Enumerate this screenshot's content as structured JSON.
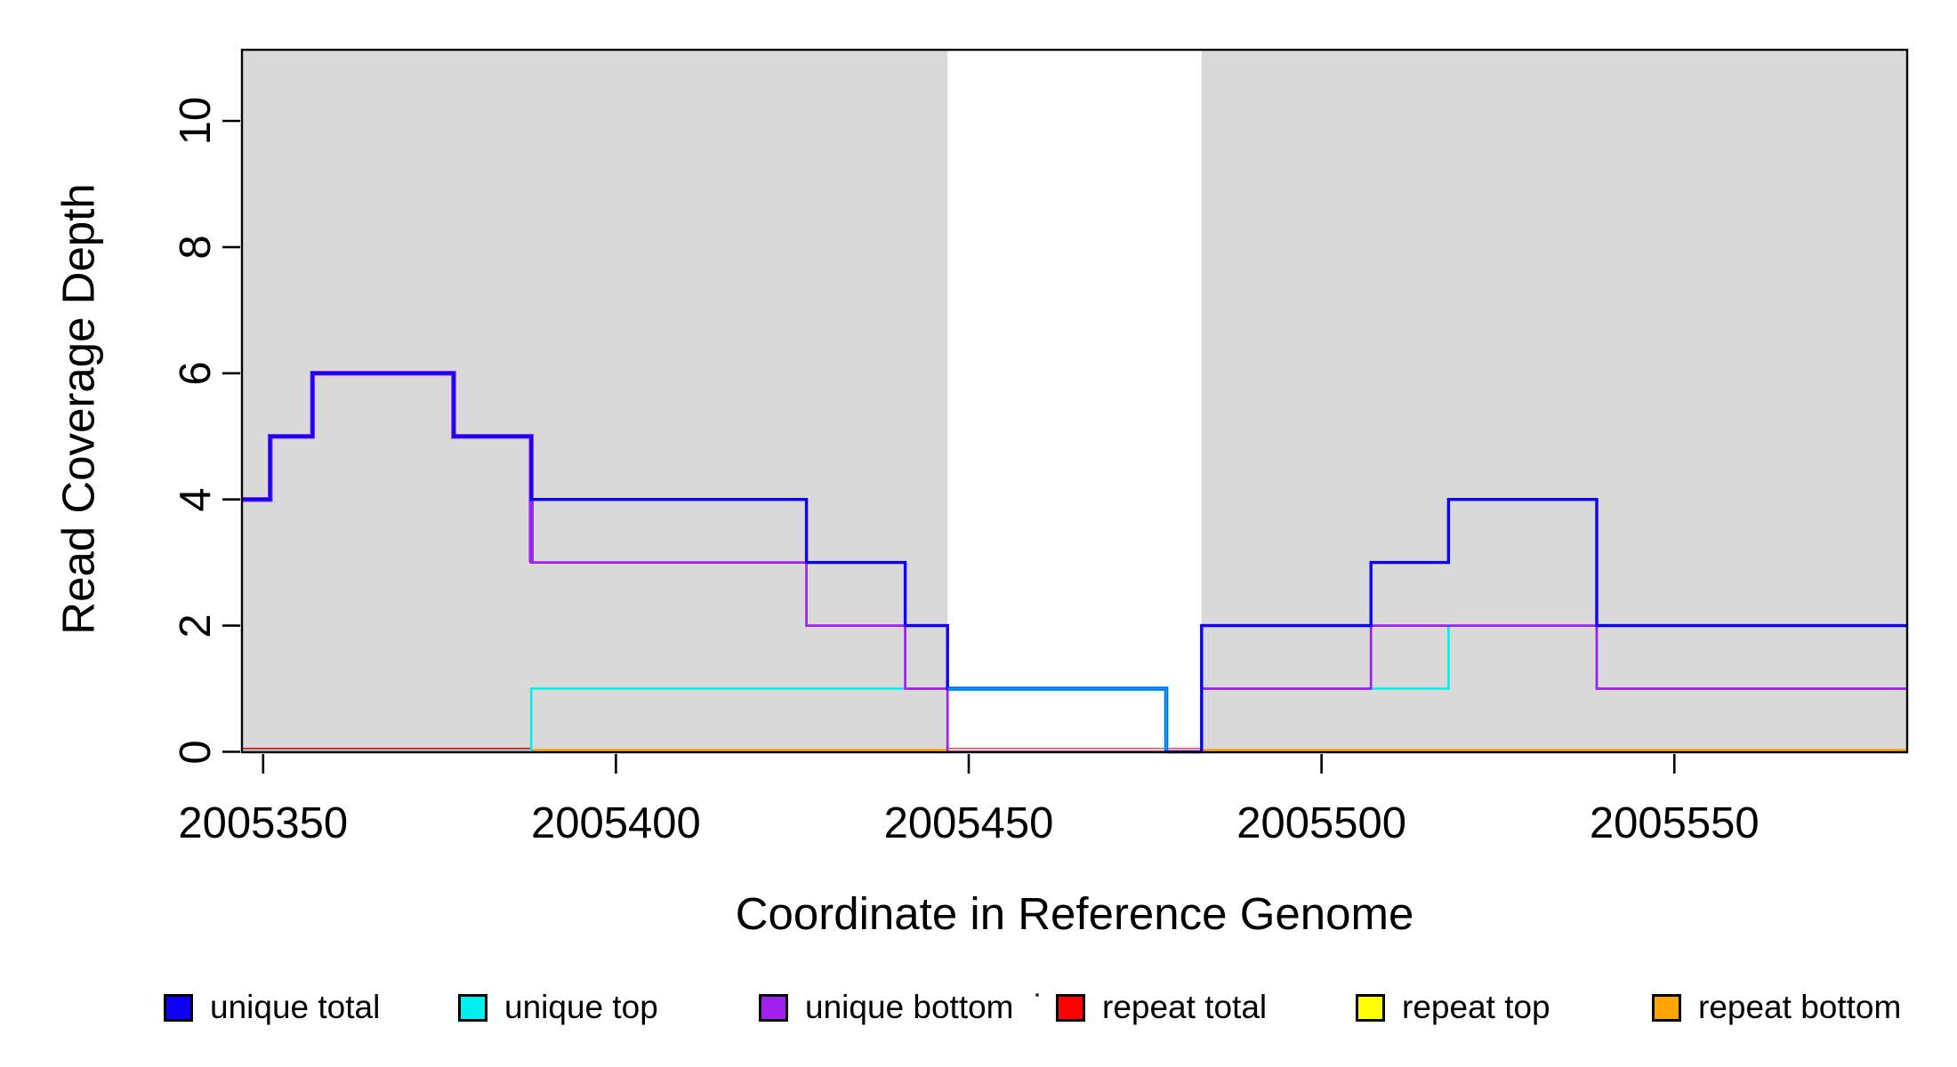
{
  "chart_data": {
    "type": "line",
    "subtype": "step-coverage",
    "title": "",
    "xlabel": "Coordinate in Reference Genome",
    "ylabel": "Read Coverage Depth",
    "xlim": [
      2005347,
      2005583
    ],
    "ylim": [
      0,
      11.13
    ],
    "grid": false,
    "x_ticks": [
      2005350,
      2005400,
      2005450,
      2005500,
      2005550
    ],
    "x_tick_labels": [
      "2005350",
      "2005400",
      "2005450",
      "2005500",
      "2005550"
    ],
    "y_ticks": [
      0,
      2,
      4,
      6,
      8,
      10
    ],
    "y_tick_labels": [
      "0",
      "2",
      "4",
      "6",
      "8",
      "10"
    ],
    "shaded_regions": [
      {
        "x0": 2005347,
        "x1": 2005447,
        "color": "#d9d9d9"
      },
      {
        "x0": 2005483,
        "x1": 2005583,
        "color": "#d9d9d9"
      }
    ],
    "series": [
      {
        "name": "unique total",
        "color": "#0d00f5",
        "points": [
          [
            2005347,
            4
          ],
          [
            2005351,
            5
          ],
          [
            2005357,
            6
          ],
          [
            2005377,
            5
          ],
          [
            2005388,
            4
          ],
          [
            2005427,
            3
          ],
          [
            2005441,
            2
          ],
          [
            2005447,
            1
          ],
          [
            2005478,
            0
          ],
          [
            2005483,
            2
          ],
          [
            2005507,
            3
          ],
          [
            2005518,
            4
          ],
          [
            2005539,
            2
          ],
          [
            2005583,
            2
          ]
        ]
      },
      {
        "name": "unique top",
        "color": "#00f0f0",
        "points": [
          [
            2005347,
            0
          ],
          [
            2005388,
            1
          ],
          [
            2005478,
            0
          ],
          [
            2005483,
            1
          ],
          [
            2005518,
            2
          ],
          [
            2005539,
            1
          ],
          [
            2005583,
            1
          ]
        ]
      },
      {
        "name": "unique bottom",
        "color": "#a020f0",
        "points": [
          [
            2005347,
            4
          ],
          [
            2005351,
            5
          ],
          [
            2005357,
            6
          ],
          [
            2005377,
            5
          ],
          [
            2005388,
            3
          ],
          [
            2005427,
            2
          ],
          [
            2005441,
            1
          ],
          [
            2005447,
            0
          ],
          [
            2005483,
            1
          ],
          [
            2005507,
            2
          ],
          [
            2005539,
            1
          ],
          [
            2005583,
            1
          ]
        ]
      },
      {
        "name": "repeat total",
        "color": "#ff0000",
        "points": [
          [
            2005347,
            0
          ],
          [
            2005583,
            0
          ]
        ]
      },
      {
        "name": "repeat top",
        "color": "#ffff00",
        "points": [
          [
            2005347,
            0
          ],
          [
            2005583,
            0
          ]
        ]
      },
      {
        "name": "repeat bottom",
        "color": "#ffa500",
        "points": [
          [
            2005347,
            0
          ],
          [
            2005583,
            0
          ]
        ]
      }
    ],
    "legend": {
      "position": "bottom",
      "entries": [
        {
          "label": "unique total",
          "color": "#0d00f5"
        },
        {
          "label": "unique top",
          "color": "#00f0f0"
        },
        {
          "label": "unique bottom",
          "color": "#a020f0"
        },
        {
          "label": "repeat total",
          "color": "#ff0000"
        },
        {
          "label": "repeat top",
          "color": "#ffff00"
        },
        {
          "label": "repeat bottom",
          "color": "#ffa500"
        }
      ],
      "stray_dot_between": [
        "unique bottom",
        "repeat total"
      ]
    }
  },
  "axes": {
    "x_label": "Coordinate in Reference Genome",
    "y_label": "Read Coverage Depth"
  }
}
